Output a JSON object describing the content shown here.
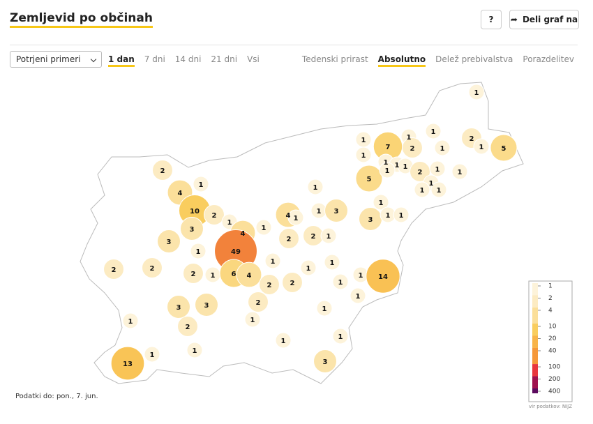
{
  "header": {
    "title": "Zemljevid po občinah",
    "help": "?",
    "share": "Deli graf na"
  },
  "controls": {
    "measure": "Potrjeni primeri",
    "periods": [
      "1 dan",
      "7 dni",
      "14 dni",
      "21 dni",
      "Vsi"
    ],
    "modes": [
      "Tedenski prirast",
      "Absolutno",
      "Delež prebivalstva",
      "Porazdelitev"
    ]
  },
  "map": {
    "values": [
      1,
      1,
      1,
      1,
      7,
      2,
      1,
      2,
      1,
      5,
      1,
      1,
      1,
      1,
      2,
      1,
      1,
      5,
      1,
      1,
      1,
      1,
      2,
      4,
      1,
      1,
      10,
      2,
      1,
      1,
      3,
      1,
      4,
      1,
      3,
      1,
      1,
      3,
      4,
      1,
      2,
      2,
      1,
      3,
      1,
      49,
      1,
      1,
      1,
      2,
      2,
      2,
      1,
      6,
      4,
      1,
      1,
      14,
      2,
      2,
      1,
      3,
      3,
      2,
      1,
      1,
      1,
      2,
      1,
      1,
      1,
      1,
      13,
      3
    ],
    "scale": {
      "ticks": [
        1,
        2,
        4,
        10,
        20,
        40,
        100,
        200,
        400
      ],
      "colors": [
        "#fdf3da",
        "#fcebc2",
        "#fbdf9a",
        "#f9cd5e",
        "#f8b449",
        "#f5983a",
        "#e8363e",
        "#a0124f",
        "#5c0a5e"
      ]
    },
    "source": "vir podatkov: NIJZ"
  },
  "footer": "Podatki do: pon., 7. jun."
}
